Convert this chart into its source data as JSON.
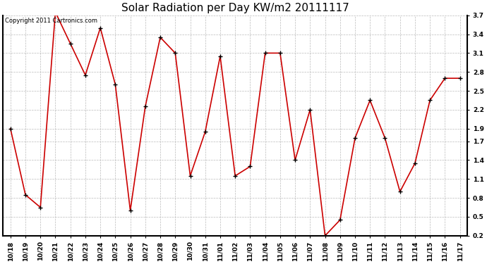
{
  "title": "Solar Radiation per Day KW/m2 20111117",
  "copyright": "Copyright 2011 Cartronics.com",
  "labels": [
    "10/18",
    "10/19",
    "10/20",
    "10/21",
    "10/22",
    "10/23",
    "10/24",
    "10/25",
    "10/26",
    "10/27",
    "10/28",
    "10/29",
    "10/30",
    "10/31",
    "11/01",
    "11/02",
    "11/03",
    "11/04",
    "11/05",
    "11/06",
    "11/07",
    "11/08",
    "11/09",
    "11/10",
    "11/11",
    "11/12",
    "11/13",
    "11/14",
    "11/15",
    "11/16",
    "11/17"
  ],
  "values": [
    1.9,
    0.85,
    0.65,
    3.75,
    3.25,
    2.75,
    3.5,
    2.6,
    0.6,
    2.25,
    3.35,
    3.1,
    1.15,
    1.85,
    3.05,
    1.15,
    1.3,
    3.1,
    3.1,
    1.4,
    2.2,
    0.2,
    0.45,
    1.75,
    2.35,
    1.75,
    0.9,
    1.35,
    2.35,
    2.7,
    2.7
  ],
  "line_color": "#cc0000",
  "marker_color": "#000000",
  "bg_color": "#ffffff",
  "grid_color": "#bbbbbb",
  "ylim": [
    0.2,
    3.7
  ],
  "yticks": [
    0.2,
    0.5,
    0.8,
    1.1,
    1.4,
    1.7,
    1.9,
    2.2,
    2.5,
    2.8,
    3.1,
    3.4,
    3.7
  ],
  "title_fontsize": 11,
  "copyright_fontsize": 6,
  "tick_fontsize": 6.5,
  "figwidth": 6.9,
  "figheight": 3.75,
  "dpi": 100
}
